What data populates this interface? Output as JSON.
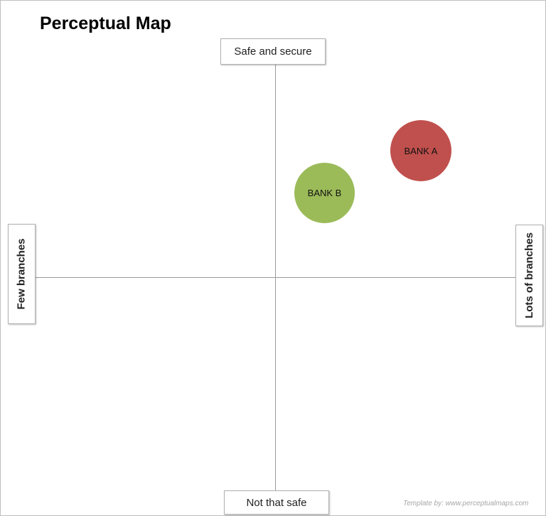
{
  "title": "Perceptual Map",
  "axes": {
    "top": "Safe and secure",
    "bottom": "Not that safe",
    "left": "Few branches",
    "right": "Lots of branches"
  },
  "credit": "Template by: www.perceptualmaps.com",
  "chart_data": {
    "type": "scatter",
    "title": "Perceptual Map",
    "xlabel_left": "Few branches",
    "xlabel_right": "Lots of branches",
    "ylabel_top": "Safe and secure",
    "ylabel_bottom": "Not that safe",
    "xlim": [
      -1,
      1
    ],
    "ylim": [
      -1,
      1
    ],
    "grid": false,
    "points": [
      {
        "label": "BANK A",
        "x": 0.6,
        "y": 0.6,
        "color": "#c0504d"
      },
      {
        "label": "BANK B",
        "x": 0.2,
        "y": 0.4,
        "color": "#9bbb59"
      }
    ]
  }
}
